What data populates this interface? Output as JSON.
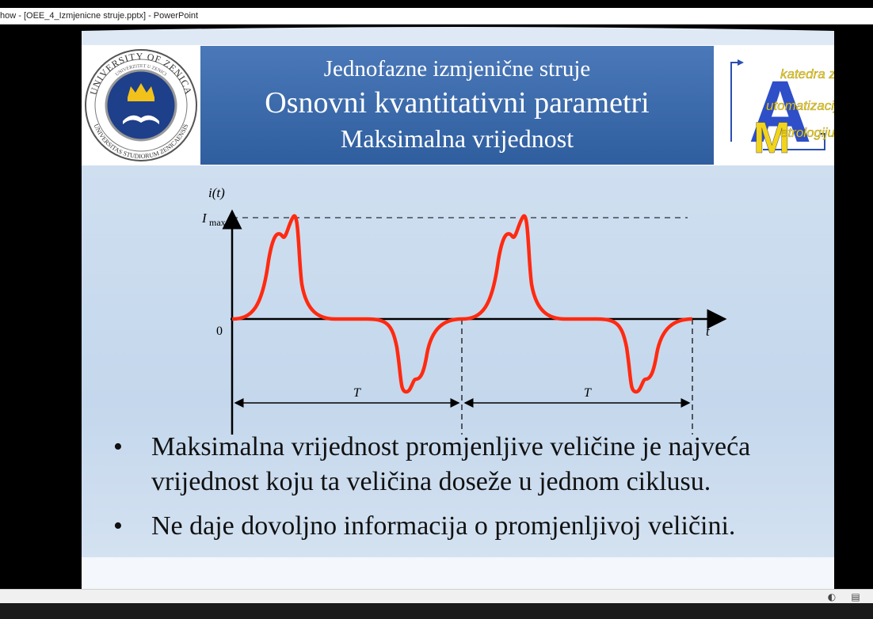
{
  "window": {
    "title": "how - [OEE_4_Izmjenicne struje.pptx] - PowerPoint"
  },
  "slide": {
    "header": {
      "line1": "Jednofazne izmjenične struje",
      "line2": "Osnovni kvantitativni parametri",
      "line3": "Maksimalna vrijednost"
    },
    "logo_left": {
      "ring_top": "UNIVERSITY OF ZENICA",
      "ring_bottom": "UNIVERSITAS STUDIORUM ZENICAENSIS",
      "inner": "UNIVERZITET U ZENICI"
    },
    "logo_right": {
      "line1": "katedra za",
      "line2": "utomatizaciju i",
      "line3": "etrologiju",
      "letter_a": "A",
      "letter_m": "M"
    },
    "chart_labels": {
      "y_axis": "i(t)",
      "x_axis": "t",
      "origin": "0",
      "imax": "I",
      "imax_sub": "max",
      "period1": "T",
      "period2": "T"
    },
    "bullets": [
      "Maksimalna vrijednost promjenljive veličine je najveća vrijednost koju ta veličina doseže u jednom ciklusu.",
      "Ne daje dovoljno informacija o promjenljivoj veličini."
    ]
  },
  "colors": {
    "banner": "#3a68aa",
    "waveform": "#ff2a10",
    "slide_bg": "#cadcef"
  },
  "status_icons": [
    "settings-icon",
    "slide-sorter-icon"
  ]
}
